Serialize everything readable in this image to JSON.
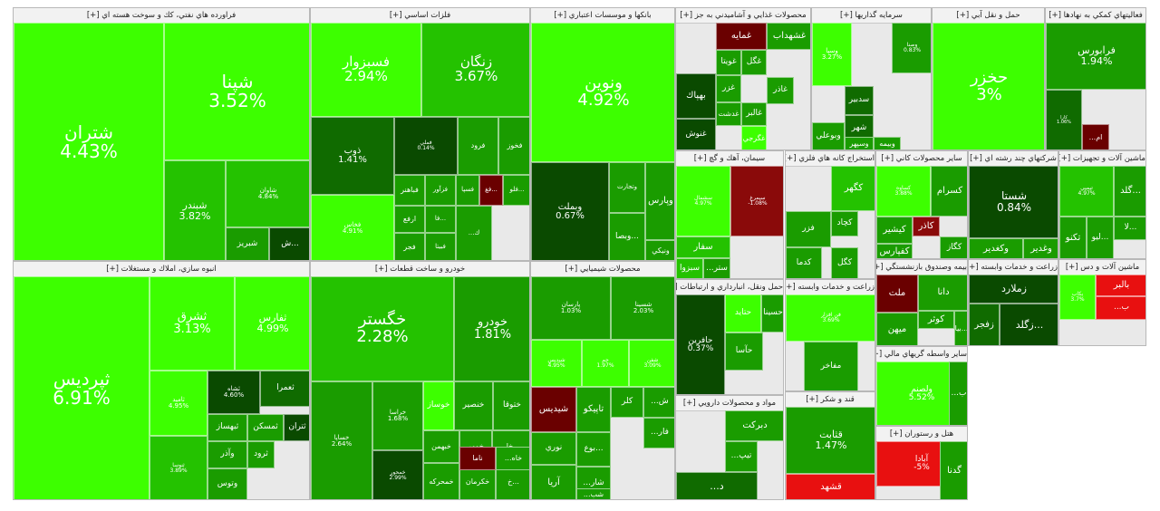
{
  "colors": {
    "bright": "#3dff00",
    "green": "#24c200",
    "mid": "#1a9c00",
    "dark": "#106b00",
    "darkest": "#0a4a00",
    "red": "#e81010",
    "darkred": "#6a0000",
    "maroon": "#8a0a0a"
  },
  "sectors": [
    {
      "title": "فراورده هاي نفتي، كك و سوخت هسته اي [+]",
      "tiles": [
        {
          "symbol": "شتران",
          "change": "4.43%"
        },
        {
          "symbol": "شپنا",
          "change": "3.52%"
        },
        {
          "symbol": "شبندر",
          "change": "3.82%"
        },
        {
          "symbol": "شاوان",
          "change": "4.84%"
        },
        {
          "symbol": "شبريز",
          "change": ""
        },
        {
          "symbol": "ش...",
          "change": ""
        }
      ]
    },
    {
      "title": "انبوه سازي، املاك و مستغلات [+]",
      "tiles": [
        {
          "symbol": "ثپرديس",
          "change": "6.91%"
        },
        {
          "symbol": "ثشرق",
          "change": "3.13%"
        },
        {
          "symbol": "ثفارس",
          "change": "4.99%"
        },
        {
          "symbol": "ثاميد",
          "change": "4.95%"
        },
        {
          "symbol": "ثشاه",
          "change": "4.60%"
        },
        {
          "symbol": "ثعمرا",
          "change": ""
        },
        {
          "symbol": "ثبهساز",
          "change": ""
        },
        {
          "symbol": "ثمسكن",
          "change": ""
        },
        {
          "symbol": "ثتران",
          "change": ""
        },
        {
          "symbol": "ثنوسا",
          "change": "3.89%"
        },
        {
          "symbol": "وآذر",
          "change": ""
        },
        {
          "symbol": "ثرود",
          "change": ""
        },
        {
          "symbol": "وتوس",
          "change": ""
        }
      ]
    },
    {
      "title": "فلزات اساسي [+]",
      "tiles": [
        {
          "symbol": "فسبزوار",
          "change": "2.94%"
        },
        {
          "symbol": "زنگان",
          "change": "3.67%"
        },
        {
          "symbol": "ذوب",
          "change": "1.41%"
        },
        {
          "symbol": "فملي",
          "change": "0.14%"
        },
        {
          "symbol": "فرود",
          "change": ""
        },
        {
          "symbol": "فخوز",
          "change": ""
        },
        {
          "symbol": "فخاس",
          "change": "4.91%"
        },
        {
          "symbol": "فباهنر",
          "change": ""
        },
        {
          "symbol": "فزآور",
          "change": ""
        },
        {
          "symbol": "فسپا",
          "change": ""
        },
        {
          "symbol": "فغ...",
          "change": ""
        },
        {
          "symbol": "فلو...",
          "change": ""
        },
        {
          "symbol": "ارفع",
          "change": ""
        },
        {
          "symbol": "فا...",
          "change": ""
        },
        {
          "symbol": "فجر",
          "change": ""
        },
        {
          "symbol": "فبيتا",
          "change": ""
        },
        {
          "symbol": "...ك",
          "change": ""
        }
      ]
    },
    {
      "title": "خودرو و ساخت قطعات [+]",
      "tiles": [
        {
          "symbol": "خگستر",
          "change": "2.28%"
        },
        {
          "symbol": "خودرو",
          "change": "1.81%"
        },
        {
          "symbol": "خساپا",
          "change": "2.64%"
        },
        {
          "symbol": "خراسا",
          "change": "1.68%"
        },
        {
          "symbol": "خمحور",
          "change": "2.99%"
        },
        {
          "symbol": "خوساز",
          "change": ""
        },
        {
          "symbol": "خنصير",
          "change": ""
        },
        {
          "symbol": "ختوقا",
          "change": ""
        },
        {
          "symbol": "خبهمن",
          "change": ""
        },
        {
          "symbol": "خمهر",
          "change": ""
        },
        {
          "symbol": "خل...",
          "change": ""
        },
        {
          "symbol": "خمحركه",
          "change": ""
        },
        {
          "symbol": "خكرمان",
          "change": ""
        },
        {
          "symbol": "خ...",
          "change": ""
        },
        {
          "symbol": "ناما",
          "change": ""
        },
        {
          "symbol": "...خاه",
          "change": ""
        }
      ]
    },
    {
      "title": "بانكها و موسسات اعتباري [+]",
      "tiles": [
        {
          "symbol": "ونوين",
          "change": "4.92%"
        },
        {
          "symbol": "وبملت",
          "change": "0.67%"
        },
        {
          "symbol": "وتجارت",
          "change": ""
        },
        {
          "symbol": "وپارس",
          "change": ""
        },
        {
          "symbol": "وبصا...",
          "change": ""
        },
        {
          "symbol": "ونيكي",
          "change": ""
        }
      ]
    },
    {
      "title": "محصولات شيميايي [+]",
      "tiles": [
        {
          "symbol": "پارسان",
          "change": "1.03%"
        },
        {
          "symbol": "شسينا",
          "change": "2.03%"
        },
        {
          "symbol": "شپديس",
          "change": "4.95%"
        },
        {
          "symbol": "جم",
          "change": "1.97%"
        },
        {
          "symbol": "شفن",
          "change": "3.09%"
        },
        {
          "symbol": "شيديس",
          "change": ""
        },
        {
          "symbol": "تاپيكو",
          "change": ""
        },
        {
          "symbol": "كلر",
          "change": ""
        },
        {
          "symbol": "...ش",
          "change": ""
        },
        {
          "symbol": "...فار",
          "change": ""
        },
        {
          "symbol": "بوع...",
          "change": ""
        },
        {
          "symbol": "نوري",
          "change": ""
        },
        {
          "symbol": "...شار",
          "change": ""
        },
        {
          "symbol": "...شب",
          "change": ""
        },
        {
          "symbol": "آريا",
          "change": ""
        }
      ]
    },
    {
      "title": "محصولات غذايي و آشاميدني به جز [+]",
      "tiles": [
        {
          "symbol": "غمايه",
          "change": ""
        },
        {
          "symbol": "غشهداب",
          "change": ""
        },
        {
          "symbol": "غويتا",
          "change": ""
        },
        {
          "symbol": "غگل",
          "change": ""
        },
        {
          "symbol": "بهپاك",
          "change": ""
        },
        {
          "symbol": "غزر",
          "change": ""
        },
        {
          "symbol": "غاذر",
          "change": ""
        },
        {
          "symbol": "غالبر",
          "change": ""
        },
        {
          "symbol": "غدشت",
          "change": ""
        },
        {
          "symbol": "غگرجي",
          "change": ""
        },
        {
          "symbol": "غنوش",
          "change": ""
        }
      ]
    },
    {
      "title": "سيمان، آهك و گچ [+]",
      "tiles": [
        {
          "symbol": "سشمال",
          "change": "4.97%"
        },
        {
          "symbol": "سيمرغ",
          "change": "-1.08%"
        },
        {
          "symbol": "سفار",
          "change": ""
        },
        {
          "symbol": "سبزوا",
          "change": ""
        },
        {
          "symbol": "...ستر",
          "change": ""
        }
      ]
    },
    {
      "title": "حمل ونقل، انبارداري و ارتباطات [+]",
      "tiles": [
        {
          "symbol": "حافرين",
          "change": "0.37%"
        },
        {
          "symbol": "حتايد",
          "change": ""
        },
        {
          "symbol": "حسينا",
          "change": ""
        },
        {
          "symbol": "حآسا",
          "change": ""
        }
      ]
    },
    {
      "title": "مواد و محصولات دارويي [+]",
      "tiles": [
        {
          "symbol": "دبركت",
          "change": ""
        },
        {
          "symbol": "...تيپ",
          "change": ""
        },
        {
          "symbol": "...د",
          "change": ""
        },
        {
          "symbol": "دسبحان",
          "change": ""
        }
      ]
    },
    {
      "title": "سرمايه گذاريها [+]",
      "tiles": [
        {
          "symbol": "وسپا",
          "change": "3.27%"
        },
        {
          "symbol": "وصنا",
          "change": "0.83%"
        },
        {
          "symbol": "سدبير",
          "change": ""
        },
        {
          "symbol": "شهر",
          "change": ""
        },
        {
          "symbol": "وبوعلي",
          "change": ""
        },
        {
          "symbol": "وسپهر",
          "change": ""
        },
        {
          "symbol": "وبيمه",
          "change": ""
        }
      ]
    },
    {
      "title": "استخراج كانه هاي فلزي [+]",
      "tiles": [
        {
          "symbol": "كگهر",
          "change": ""
        },
        {
          "symbol": "كچاد",
          "change": ""
        },
        {
          "symbol": "فزر",
          "change": ""
        },
        {
          "symbol": "كدما",
          "change": ""
        },
        {
          "symbol": "كگل",
          "change": ""
        }
      ]
    },
    {
      "title": "زراعت و خدمات وابسته [+]",
      "tiles": [
        {
          "symbol": "فن افزار",
          "change": "3.69%"
        },
        {
          "symbol": "مفاخر",
          "change": ""
        }
      ]
    },
    {
      "title": "قند و شكر [+]",
      "tiles": [
        {
          "symbol": "قثابت",
          "change": "1.47%"
        },
        {
          "symbol": "قشهد",
          "change": ""
        }
      ]
    },
    {
      "title": "حمل و نقل آبي [+]",
      "tiles": [
        {
          "symbol": "حخزر",
          "change": "3%"
        }
      ]
    },
    {
      "title": "فعاليتهاي كمكي به نهادها [+]",
      "tiles": [
        {
          "symbol": "فرابورس",
          "change": "1.94%"
        },
        {
          "symbol": "كارا",
          "change": "1.06%"
        },
        {
          "symbol": "...ام",
          "change": ""
        }
      ]
    },
    {
      "title": "ساير محصولات كاني [+]",
      "tiles": [
        {
          "symbol": "كساوه",
          "change": "3.88%"
        },
        {
          "symbol": "كسرام",
          "change": ""
        },
        {
          "symbol": "كاذر",
          "change": ""
        },
        {
          "symbol": "كيشير",
          "change": ""
        },
        {
          "symbol": "كفپارس",
          "change": ""
        },
        {
          "symbol": "كگاز",
          "change": ""
        }
      ]
    },
    {
      "title": "شركتهاي چند رشته اي [+]",
      "tiles": [
        {
          "symbol": "شستا",
          "change": "0.84%"
        },
        {
          "symbol": "وغدير",
          "change": ""
        },
        {
          "symbol": "وكغدير",
          "change": ""
        }
      ]
    },
    {
      "title": "ماشين آلات و تجهيزات [+]",
      "tiles": [
        {
          "symbol": "تپمپي",
          "change": "4.97%"
        },
        {
          "symbol": "گلد...",
          "change": ""
        },
        {
          "symbol": "لا...",
          "change": ""
        },
        {
          "symbol": "تكنو",
          "change": ""
        },
        {
          "symbol": "ليو...",
          "change": ""
        }
      ]
    },
    {
      "title": "بيمه وصندوق بازنشستگي [+]",
      "tiles": [
        {
          "symbol": "ملت",
          "change": ""
        },
        {
          "symbol": "دانا",
          "change": ""
        },
        {
          "symbol": "كوثر",
          "change": ""
        },
        {
          "symbol": "ميهن",
          "change": ""
        },
        {
          "symbol": "بيا...",
          "change": ""
        }
      ]
    },
    {
      "title": "زراعت و خدمات وابسته [+]",
      "tiles": [
        {
          "symbol": "زملارد",
          "change": ""
        },
        {
          "symbol": "زفجر",
          "change": ""
        },
        {
          "symbol": "زگلد...",
          "change": ""
        }
      ]
    },
    {
      "title": "ماشين آلات و دس [+]",
      "tiles": [
        {
          "symbol": "بالبر",
          "change": ""
        },
        {
          "symbol": "بكاب",
          "change": "3.7%"
        },
        {
          "symbol": "...ب",
          "change": ""
        }
      ]
    },
    {
      "title": "ساير واسطه گريهاي مالي [+]",
      "tiles": [
        {
          "symbol": "ولصنم",
          "change": "5.52%"
        },
        {
          "symbol": "...ب",
          "change": ""
        }
      ]
    },
    {
      "title": "هتل و رستوران [+]",
      "tiles": [
        {
          "symbol": "آبادا",
          "change": "-5%"
        },
        {
          "symbol": "گدنا",
          "change": ""
        }
      ]
    }
  ]
}
